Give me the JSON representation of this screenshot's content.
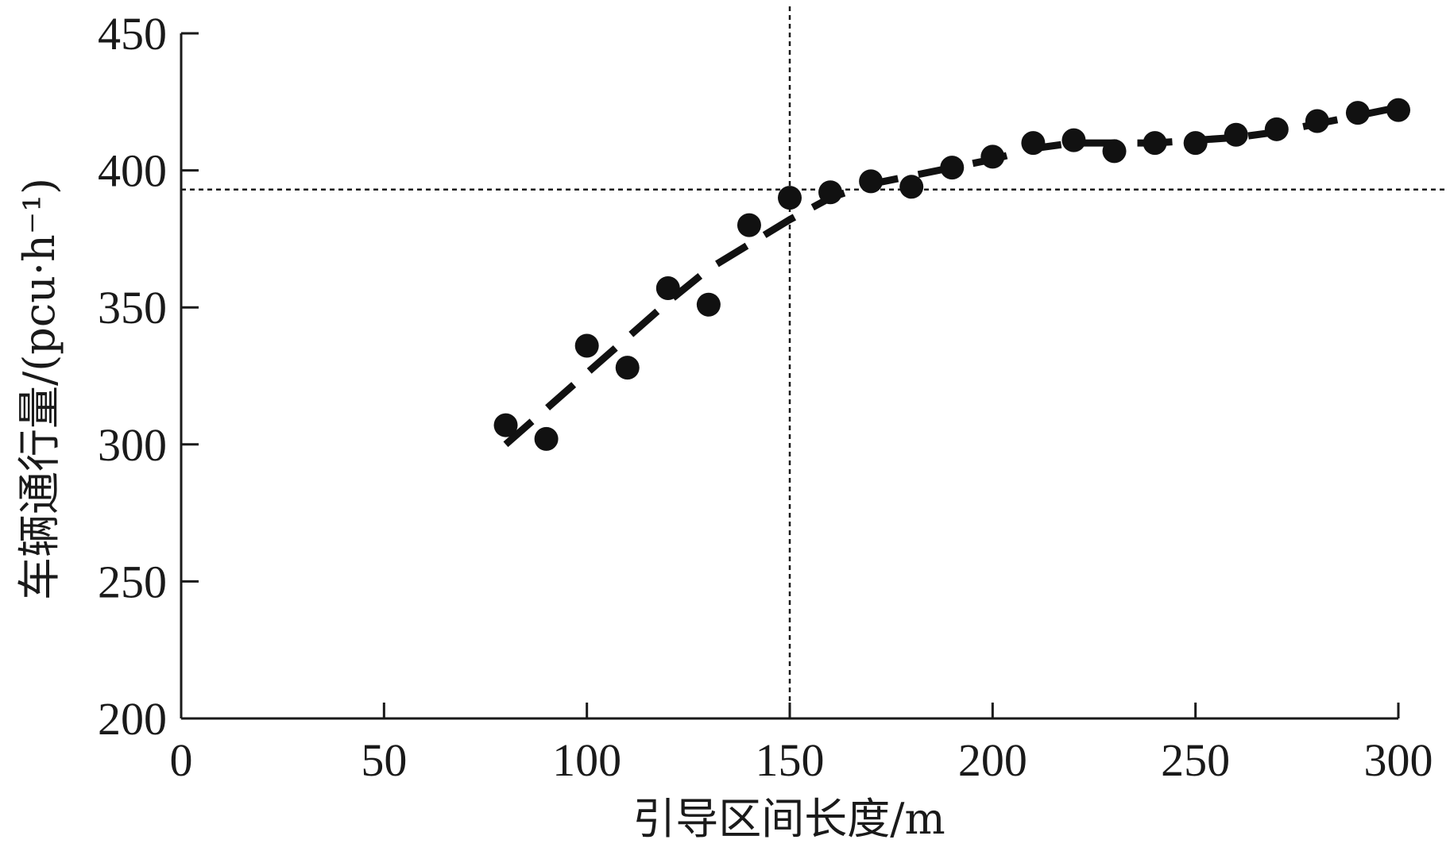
{
  "chart_data": {
    "type": "scatter",
    "title": "",
    "xlabel": "引导区间长度/m",
    "ylabel": "车辆通行量/(pcu·h⁻¹)",
    "xlim": [
      0,
      300
    ],
    "ylim": [
      200,
      450
    ],
    "x_ticks": [
      0,
      50,
      100,
      150,
      200,
      250,
      300
    ],
    "y_ticks": [
      200,
      250,
      300,
      350,
      400,
      450
    ],
    "x_tick_labels": [
      "0",
      "50",
      "100",
      "150",
      "200",
      "250",
      "300"
    ],
    "y_tick_labels": [
      "200",
      "250",
      "300",
      "350",
      "400",
      "450"
    ],
    "grid": false,
    "series": [
      {
        "type": "scatter",
        "x": [
          80,
          90,
          100,
          110,
          120,
          130,
          140,
          150,
          160,
          170,
          180,
          190,
          200,
          210,
          220,
          230,
          240,
          250,
          260,
          270,
          280,
          290,
          300
        ],
        "y": [
          307,
          302,
          336,
          328,
          357,
          351,
          380,
          390,
          392,
          396,
          394,
          401,
          405,
          410,
          411,
          407,
          410,
          410,
          413,
          415,
          418,
          421,
          422
        ]
      },
      {
        "type": "line",
        "style": "dashed",
        "x": [
          80,
          90,
          100,
          110,
          120,
          130,
          140,
          150,
          160,
          170,
          180,
          190,
          200,
          210,
          220,
          230,
          240,
          250,
          260,
          270,
          280,
          290,
          300
        ],
        "y": [
          300,
          313,
          326,
          339,
          352,
          364,
          373,
          382,
          390,
          395,
          398,
          401,
          404,
          408,
          410,
          410,
          410,
          411,
          412,
          414,
          417,
          420,
          423
        ]
      }
    ],
    "reference_lines": [
      {
        "orientation": "vertical",
        "x": 150,
        "style": "dotted"
      },
      {
        "orientation": "horizontal",
        "y": 393,
        "style": "dotted"
      }
    ],
    "colors": {
      "marks": "#111111",
      "axis": "#1a1a1a"
    }
  }
}
